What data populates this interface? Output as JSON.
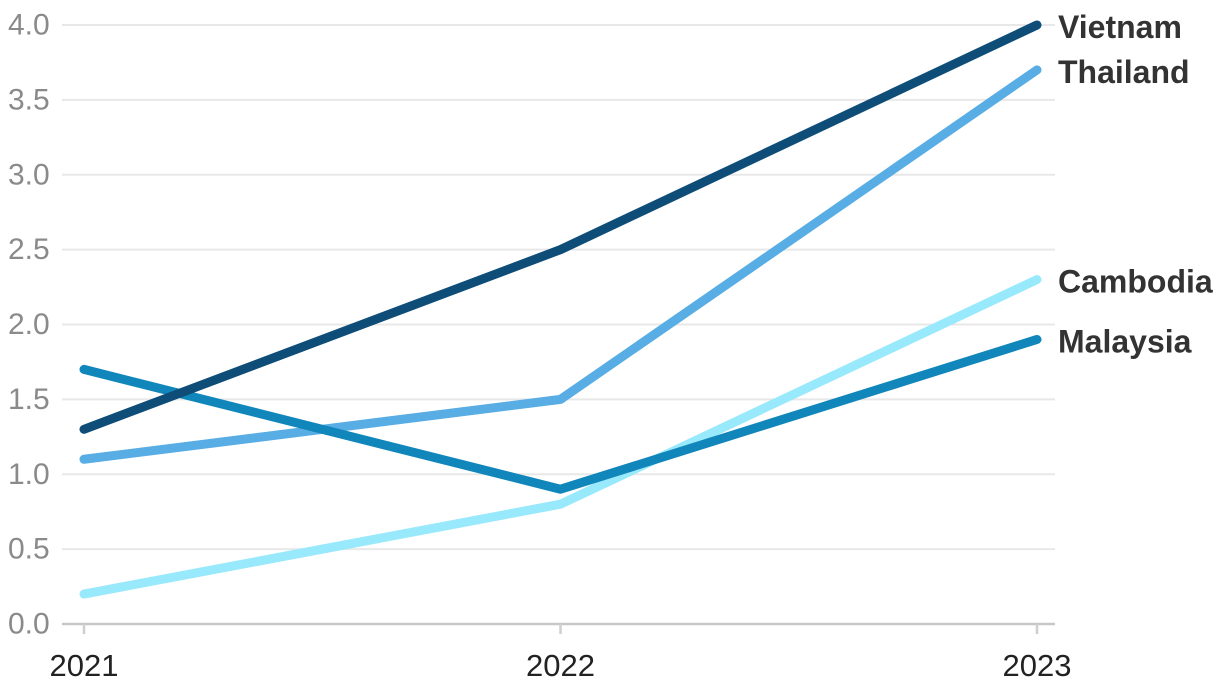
{
  "chart_data": {
    "type": "line",
    "title": "",
    "xlabel": "",
    "ylabel": "",
    "x": [
      "2021",
      "2022",
      "2023"
    ],
    "series": [
      {
        "name": "Cambodia",
        "values": [
          0.2,
          0.8,
          2.3
        ],
        "color": "#99e9fc"
      },
      {
        "name": "Thailand",
        "values": [
          1.1,
          1.5,
          3.7
        ],
        "color": "#57ade4"
      },
      {
        "name": "Malaysia",
        "values": [
          1.7,
          0.9,
          1.9
        ],
        "color": "#1086bb"
      },
      {
        "name": "Vietnam",
        "values": [
          1.3,
          2.5,
          4.0
        ],
        "color": "#0e4d78"
      }
    ],
    "ylim": [
      0,
      4
    ],
    "ytick_step": 0.5,
    "ytick_labels": [
      "0.0",
      "0.5",
      "1.0",
      "1.5",
      "2.0",
      "2.5",
      "3.0",
      "3.5",
      "4.0"
    ],
    "grid": true,
    "legend_position": "right-end-labels"
  },
  "style": {
    "background": "#ffffff",
    "grid_color": "#e8e8e8",
    "axis_color": "#c7c7c7",
    "tick_color": "#cfcfcf",
    "ytick_text_color": "#8a8a8a",
    "xtick_text_color": "#222222",
    "series_label_color": "#333333",
    "line_width": 9
  }
}
